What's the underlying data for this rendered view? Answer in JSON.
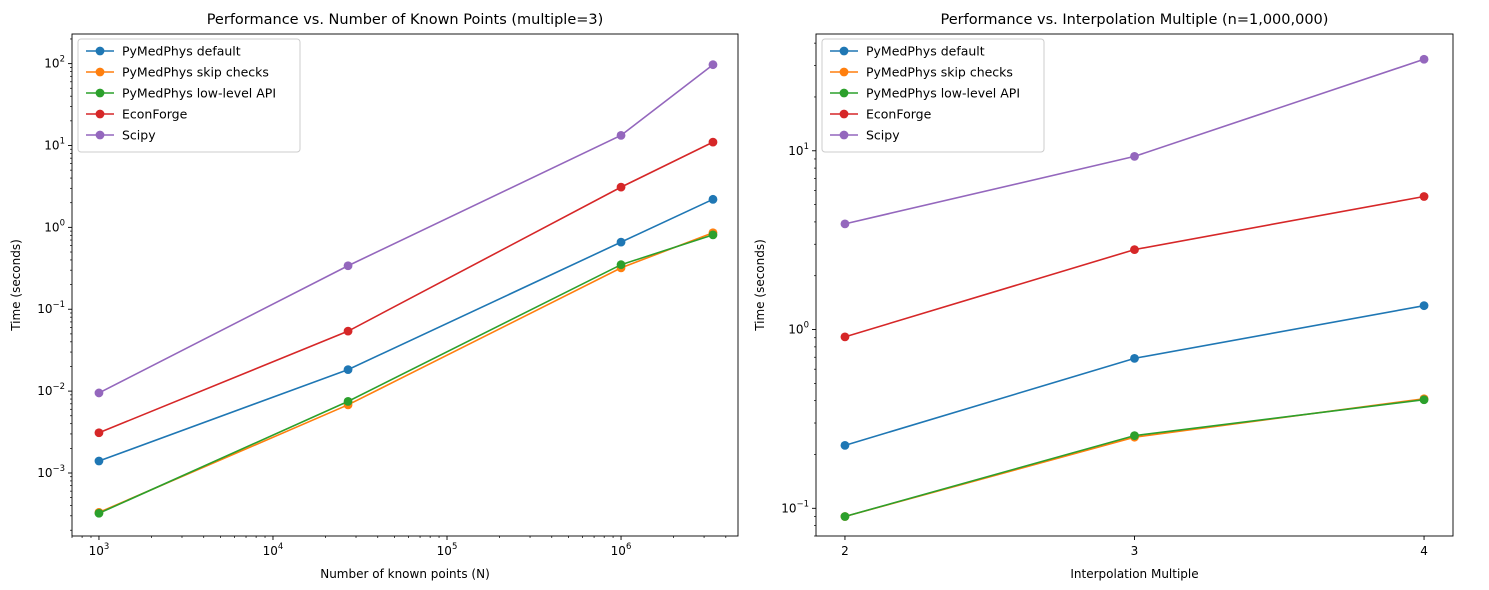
{
  "chart_data": [
    {
      "type": "line",
      "title": "Performance vs. Number of Known Points (multiple=3)",
      "xlabel": "Number of known points (N)",
      "ylabel": "Time (seconds)",
      "xscale": "log",
      "yscale": "log",
      "xlim": [
        700,
        4700000
      ],
      "ylim": [
        0.00017,
        230
      ],
      "xticks": [
        1000,
        10000,
        100000,
        1000000
      ],
      "xtick_labels": [
        {
          "base": "10",
          "exp": "3"
        },
        {
          "base": "10",
          "exp": "4"
        },
        {
          "base": "10",
          "exp": "5"
        },
        {
          "base": "10",
          "exp": "6"
        }
      ],
      "yticks": [
        0.001,
        0.01,
        0.1,
        1,
        10,
        100
      ],
      "ytick_labels": [
        {
          "base": "10",
          "exp": "−3"
        },
        {
          "base": "10",
          "exp": "−2"
        },
        {
          "base": "10",
          "exp": "−1"
        },
        {
          "base": "10",
          "exp": "0"
        },
        {
          "base": "10",
          "exp": "1"
        },
        {
          "base": "10",
          "exp": "2"
        }
      ],
      "grid": false,
      "legend_position": "upper-left",
      "x": [
        1000,
        27000,
        1000000,
        3375000
      ],
      "series": [
        {
          "name": "PyMedPhys default",
          "color": "#1f77b4",
          "values": [
            0.0014,
            0.0183,
            0.66,
            2.2
          ]
        },
        {
          "name": "PyMedPhys skip checks",
          "color": "#ff7f0e",
          "values": [
            0.00033,
            0.0068,
            0.32,
            0.86
          ]
        },
        {
          "name": "PyMedPhys low-level API",
          "color": "#2ca02c",
          "values": [
            0.000322,
            0.0075,
            0.35,
            0.81
          ]
        },
        {
          "name": "EconForge",
          "color": "#d62728",
          "values": [
            0.0031,
            0.054,
            3.1,
            11.0
          ]
        },
        {
          "name": "Scipy",
          "color": "#9467bd",
          "values": [
            0.0095,
            0.34,
            13.3,
            97.0
          ]
        }
      ]
    },
    {
      "type": "line",
      "title": "Performance vs. Interpolation Multiple (n=1,000,000)",
      "xlabel": "Interpolation Multiple",
      "ylabel": "Time (seconds)",
      "xscale": "linear",
      "yscale": "log",
      "xlim": [
        1.9,
        4.1
      ],
      "ylim": [
        0.07,
        45
      ],
      "xticks": [
        2,
        3,
        4
      ],
      "xtick_labels": [
        {
          "base": "2",
          "exp": ""
        },
        {
          "base": "3",
          "exp": ""
        },
        {
          "base": "4",
          "exp": ""
        }
      ],
      "yticks": [
        0.1,
        1,
        10
      ],
      "ytick_labels": [
        {
          "base": "10",
          "exp": "−1"
        },
        {
          "base": "10",
          "exp": "0"
        },
        {
          "base": "10",
          "exp": "1"
        }
      ],
      "grid": false,
      "legend_position": "upper-left",
      "x": [
        2,
        3,
        4
      ],
      "series": [
        {
          "name": "PyMedPhys default",
          "color": "#1f77b4",
          "values": [
            0.225,
            0.69,
            1.36
          ]
        },
        {
          "name": "PyMedPhys skip checks",
          "color": "#ff7f0e",
          "values": [
            0.09,
            0.25,
            0.41
          ]
        },
        {
          "name": "PyMedPhys low-level API",
          "color": "#2ca02c",
          "values": [
            0.09,
            0.255,
            0.405
          ]
        },
        {
          "name": "EconForge",
          "color": "#d62728",
          "values": [
            0.91,
            2.8,
            5.55
          ]
        },
        {
          "name": "Scipy",
          "color": "#9467bd",
          "values": [
            3.9,
            9.3,
            32.5
          ]
        }
      ]
    }
  ]
}
